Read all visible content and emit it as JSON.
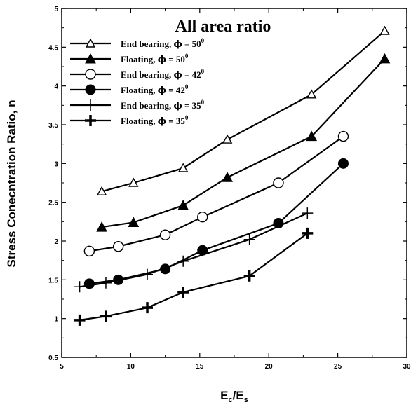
{
  "chart_data": {
    "type": "line",
    "title": "All area ratio",
    "xlabel_main": "E",
    "xlabel_sub1": "c",
    "xlabel_sep": "/E",
    "xlabel_sub2": "s",
    "ylabel": "Stress Conecntration Ratio, n",
    "xlim": [
      5,
      30
    ],
    "ylim": [
      0.5,
      5
    ],
    "x_ticks": [
      "5",
      "10",
      "15",
      "20",
      "25",
      "30"
    ],
    "y_ticks": [
      "0.5",
      "1",
      "1.5",
      "2",
      "2.5",
      "3",
      "3.5",
      "4",
      "4.5",
      "5"
    ],
    "legend_position": "top-left",
    "grid": false,
    "series": [
      {
        "name_prefix": "End bearing, ",
        "phi": "ϕ",
        "name_eq": " = 50",
        "deg": "0",
        "marker": "triangle-open",
        "x": [
          7.9,
          10.2,
          13.8,
          17.0,
          23.1,
          28.4
        ],
        "y": [
          2.64,
          2.75,
          2.94,
          3.31,
          3.89,
          4.71
        ]
      },
      {
        "name_prefix": "Floating, ",
        "phi": "ϕ",
        "name_eq": " = 50",
        "deg": "0",
        "marker": "triangle-filled",
        "x": [
          7.9,
          10.2,
          13.8,
          17.0,
          23.1,
          28.4
        ],
        "y": [
          2.18,
          2.24,
          2.46,
          2.82,
          3.35,
          4.35
        ]
      },
      {
        "name_prefix": "End bearing, ",
        "phi": "ϕ",
        "name_eq": " = 42",
        "deg": "0",
        "marker": "circle-open",
        "x": [
          7.0,
          9.1,
          12.5,
          15.2,
          20.7,
          25.4
        ],
        "y": [
          1.87,
          1.93,
          2.08,
          2.31,
          2.75,
          3.35
        ]
      },
      {
        "name_prefix": "Floating, ",
        "phi": "ϕ",
        "name_eq": " = 42",
        "deg": "0",
        "marker": "circle-filled",
        "x": [
          7.0,
          9.1,
          12.5,
          15.2,
          20.7,
          25.4
        ],
        "y": [
          1.45,
          1.5,
          1.64,
          1.88,
          2.23,
          3.0
        ]
      },
      {
        "name_prefix": "End bearing, ",
        "phi": "ϕ",
        "name_eq": " = 35",
        "deg": "0",
        "marker": "plus-thin",
        "x": [
          6.3,
          8.2,
          11.2,
          13.8,
          18.6,
          22.8
        ],
        "y": [
          1.41,
          1.46,
          1.57,
          1.74,
          2.02,
          2.36
        ]
      },
      {
        "name_prefix": "Floating, ",
        "phi": "ϕ",
        "name_eq": " = 35",
        "deg": "0",
        "marker": "plus-bold",
        "x": [
          6.3,
          8.2,
          11.2,
          13.8,
          18.6,
          22.8
        ],
        "y": [
          0.98,
          1.03,
          1.14,
          1.34,
          1.55,
          2.1
        ]
      }
    ]
  }
}
